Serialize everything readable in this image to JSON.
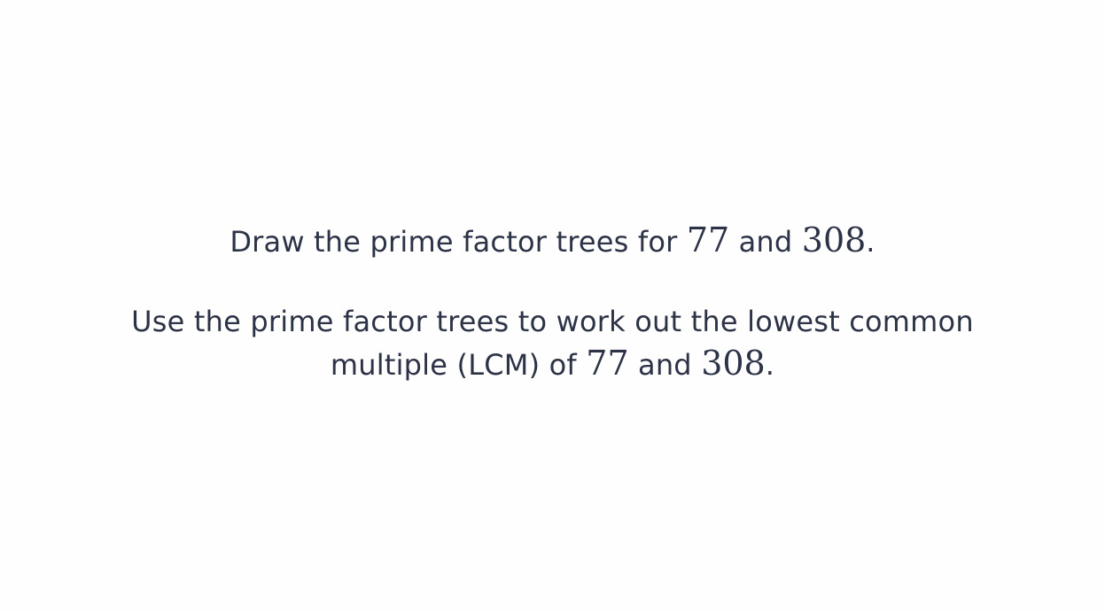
{
  "question_1": {
    "text_before": "Draw the prime factor trees for ",
    "number_a": "77",
    "text_middle": " and ",
    "number_b": "308",
    "text_after": "."
  },
  "question_2": {
    "text_line_1": "Use the prime factor trees to work out the lowest common",
    "text_before": "multiple (LCM) of ",
    "number_a": "77",
    "text_middle": " and ",
    "number_b": "308",
    "text_after": "."
  },
  "colors": {
    "text": "#2d3347",
    "background": "#fefefe"
  }
}
